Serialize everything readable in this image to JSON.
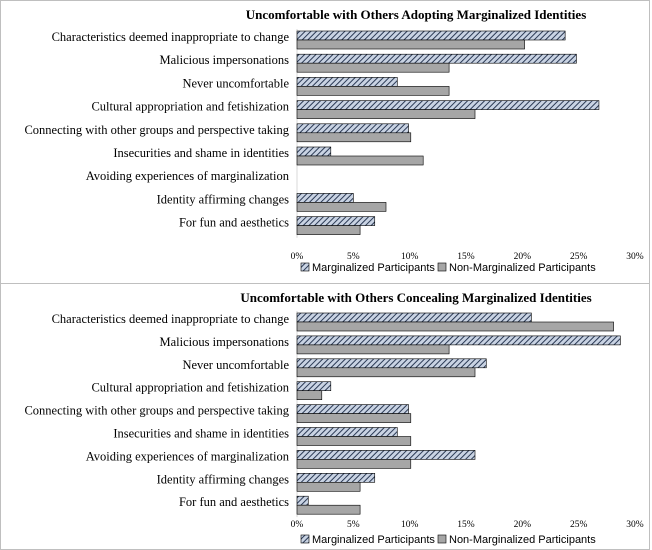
{
  "chart_data": [
    {
      "type": "bar",
      "orientation": "horizontal",
      "title": "Uncomfortable with Others Adopting Marginalized Identities",
      "categories": [
        "Characteristics deemed inappropriate to change",
        "Malicious impersonations",
        "Never uncomfortable",
        "Cultural appropriation and fetishization",
        "Connecting with other groups and perspective taking",
        "Insecurities and shame in identities",
        "Avoiding experiences of marginalization",
        "Identity affirming changes",
        "For fun and aesthetics"
      ],
      "series": [
        {
          "name": "Marginalized Participants",
          "values": [
            23.8,
            24.8,
            8.9,
            26.8,
            9.9,
            3.0,
            0,
            5.0,
            6.9
          ]
        },
        {
          "name": "Non-Marginalized Participants",
          "values": [
            20.2,
            13.5,
            13.5,
            15.8,
            10.1,
            11.2,
            0,
            7.9,
            5.6
          ]
        }
      ],
      "xticks": [
        "0%",
        "5%",
        "10%",
        "15%",
        "20%",
        "25%",
        "30%"
      ],
      "xlim": [
        0,
        30
      ],
      "grid": false,
      "legend": "bottom"
    },
    {
      "type": "bar",
      "orientation": "horizontal",
      "title": "Uncomfortable with Others Concealing Marginalized Identities",
      "categories": [
        "Characteristics deemed inappropriate to change",
        "Malicious impersonations",
        "Never uncomfortable",
        "Cultural appropriation and fetishization",
        "Connecting with other groups and perspective taking",
        "Insecurities and shame in identities",
        "Avoiding experiences of marginalization",
        "Identity affirming changes",
        "For fun and aesthetics"
      ],
      "series": [
        {
          "name": "Marginalized Participants",
          "values": [
            20.8,
            28.7,
            16.8,
            3.0,
            9.9,
            8.9,
            15.8,
            6.9,
            1.0
          ]
        },
        {
          "name": "Non-Marginalized Participants",
          "values": [
            28.1,
            13.5,
            15.8,
            2.2,
            10.1,
            10.1,
            10.1,
            5.6,
            5.6
          ]
        }
      ],
      "xticks": [
        "0%",
        "5%",
        "10%",
        "15%",
        "20%",
        "25%",
        "30%"
      ],
      "xlim": [
        0,
        30
      ],
      "grid": false,
      "legend": "bottom"
    }
  ],
  "colors": {
    "marginalized_fill": "#c9d3e3",
    "marginalized_hatch": "#2b3a55",
    "non_marginalized_fill": "#a6a6a6",
    "bar_stroke": "#000000"
  }
}
